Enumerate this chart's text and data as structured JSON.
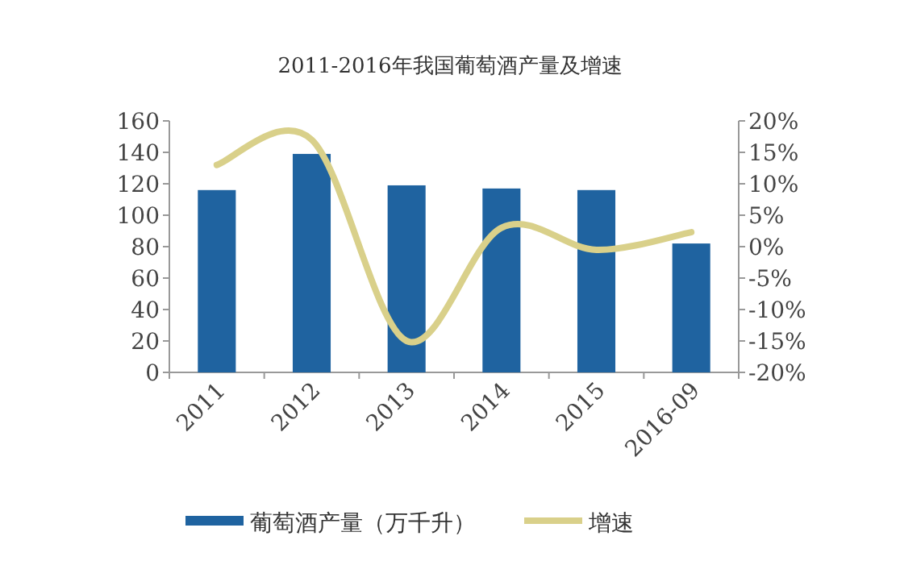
{
  "chart_data": {
    "type": "bar",
    "title": "2011-2016年我国葡萄酒产量及增速",
    "categories": [
      "2011",
      "2012",
      "2013",
      "2014",
      "2015",
      "2016-09"
    ],
    "series": [
      {
        "name": "葡萄酒产量（万千升）",
        "color": "#1f63a0",
        "values": [
          116,
          139,
          119,
          117,
          116,
          82
        ]
      },
      {
        "name": "增速",
        "type": "line",
        "axis": "y2",
        "color": "#d9d08a",
        "values": [
          13,
          17,
          -15,
          3,
          -0.5,
          2.3
        ]
      }
    ],
    "ylim": [
      0,
      160
    ],
    "yticks": [
      0,
      20,
      40,
      60,
      80,
      100,
      120,
      140,
      160
    ],
    "y2lim": [
      -20,
      20
    ],
    "y2ticks": [
      {
        "value": -20,
        "label": "-20%"
      },
      {
        "value": -15,
        "label": "-15%"
      },
      {
        "value": -10,
        "label": "-10%"
      },
      {
        "value": -5,
        "label": "-5%"
      },
      {
        "value": 0,
        "label": "0%"
      },
      {
        "value": 5,
        "label": "5%"
      },
      {
        "value": 10,
        "label": "10%"
      },
      {
        "value": 15,
        "label": "15%"
      },
      {
        "value": 20,
        "label": "20%"
      }
    ],
    "legend": "bottom",
    "grid": false
  }
}
